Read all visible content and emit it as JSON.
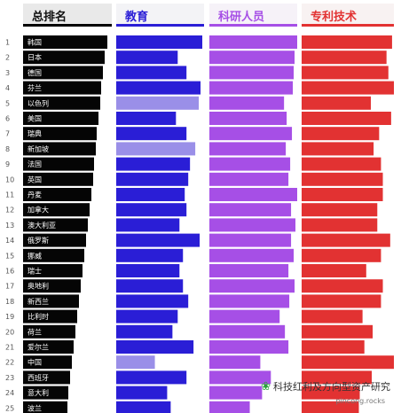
{
  "headers": {
    "rank": "总排名",
    "education": "教育",
    "researchers": "科研人员",
    "patents": "专利技术"
  },
  "colors": {
    "rank": "#050505",
    "education": "#2a1ed6",
    "education_light": "#9a8fe8",
    "researchers": "#a64fe6",
    "patents": "#e23232"
  },
  "watermark": {
    "icon": "wechat-icon",
    "text": "科技红利及方向型资产研究",
    "source": "pincong.rocks"
  },
  "chart_data": {
    "type": "bar",
    "layout": "small-multiples-horizontal",
    "ranks": [
      1,
      2,
      3,
      4,
      5,
      6,
      7,
      8,
      9,
      10,
      11,
      12,
      13,
      14,
      15,
      16,
      17,
      18,
      19,
      20,
      21,
      22,
      23,
      24,
      25
    ],
    "categories": [
      "韩国",
      "日本",
      "德国",
      "芬兰",
      "以色列",
      "美国",
      "瑞典",
      "新加坡",
      "法国",
      "英国",
      "丹麦",
      "加拿大",
      "澳大利亚",
      "俄罗斯",
      "挪威",
      "瑞士",
      "奥地利",
      "新西兰",
      "比利时",
      "荷兰",
      "爱尔兰",
      "中国",
      "西班牙",
      "意大利",
      "波兰"
    ],
    "series": [
      {
        "name": "总排名",
        "values": [
          95,
          92,
          90,
          88,
          87,
          85,
          83,
          82,
          80,
          79,
          77,
          75,
          73,
          71,
          69,
          67,
          65,
          63,
          61,
          59,
          57,
          55,
          53,
          51,
          50
        ]
      },
      {
        "name": "教育",
        "values": [
          98,
          70,
          80,
          96,
          94,
          68,
          80,
          90,
          84,
          82,
          78,
          80,
          72,
          95,
          76,
          72,
          76,
          82,
          70,
          64,
          88,
          44,
          80,
          58,
          62
        ],
        "light": [
          false,
          false,
          false,
          false,
          true,
          false,
          false,
          true,
          false,
          false,
          false,
          false,
          false,
          false,
          false,
          false,
          false,
          false,
          false,
          false,
          false,
          true,
          false,
          false,
          false
        ]
      },
      {
        "name": "科研人员",
        "values": [
          100,
          97,
          96,
          95,
          85,
          88,
          94,
          87,
          92,
          90,
          100,
          93,
          98,
          93,
          96,
          90,
          97,
          91,
          80,
          86,
          90,
          58,
          70,
          60,
          46
        ]
      },
      {
        "name": "专利技术",
        "values": [
          98,
          92,
          94,
          100,
          75,
          97,
          84,
          78,
          86,
          88,
          88,
          82,
          82,
          96,
          86,
          70,
          88,
          86,
          66,
          77,
          68,
          100,
          76,
          63,
          62
        ]
      }
    ],
    "xlim": [
      0,
      100
    ],
    "grid": false,
    "legend": "none"
  }
}
